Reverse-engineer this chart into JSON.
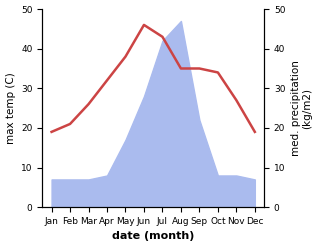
{
  "months": [
    "Jan",
    "Feb",
    "Mar",
    "Apr",
    "May",
    "Jun",
    "Jul",
    "Aug",
    "Sep",
    "Oct",
    "Nov",
    "Dec"
  ],
  "month_positions": [
    0,
    1,
    2,
    3,
    4,
    5,
    6,
    7,
    8,
    9,
    10,
    11
  ],
  "temperature": [
    19,
    21,
    26,
    32,
    38,
    46,
    43,
    35,
    35,
    34,
    27,
    19
  ],
  "precipitation": [
    7,
    7,
    7,
    8,
    17,
    28,
    42,
    47,
    22,
    8,
    8,
    7
  ],
  "temp_color": "#cc4444",
  "precip_color": "#aabbee",
  "temp_ylim": [
    0,
    50
  ],
  "precip_ylim": [
    0,
    50
  ],
  "temp_yticks": [
    0,
    10,
    20,
    30,
    40,
    50
  ],
  "precip_yticks": [
    0,
    10,
    20,
    30,
    40,
    50
  ],
  "temp_ylabel": "max temp (C)",
  "precip_ylabel": "med. precipitation\n(kg/m2)",
  "xlabel": "date (month)",
  "temp_linewidth": 1.8,
  "label_fontsize": 7.5,
  "tick_fontsize": 6.5,
  "xlabel_fontsize": 8,
  "background_color": "#ffffff"
}
